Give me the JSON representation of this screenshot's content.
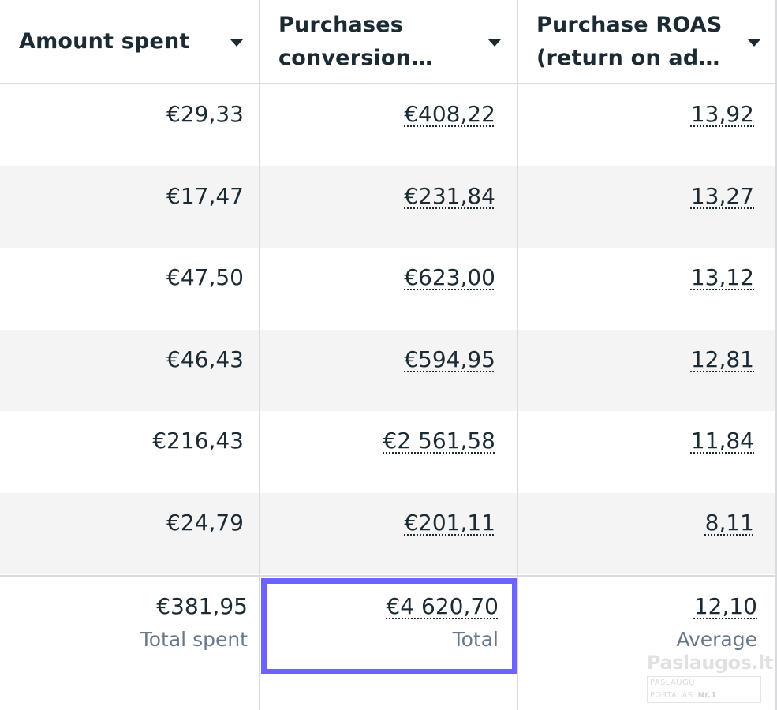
{
  "columns": [
    {
      "label": "Amount spent",
      "icon": "caret-down-icon"
    },
    {
      "label": "Purchases\nconversion…",
      "icon": "caret-down-icon"
    },
    {
      "label": "Purchase ROAS\n(return on ad…",
      "icon": "caret-down-icon"
    }
  ],
  "rows": [
    {
      "amount": "€29,33",
      "conversion": "€408,22",
      "roas": "13,92"
    },
    {
      "amount": "€17,47",
      "conversion": "€231,84",
      "roas": "13,27"
    },
    {
      "amount": "€47,50",
      "conversion": "€623,00",
      "roas": "13,12"
    },
    {
      "amount": "€46,43",
      "conversion": "€594,95",
      "roas": "12,81"
    },
    {
      "amount": "€216,43",
      "conversion": "€2 561,58",
      "roas": "11,84"
    },
    {
      "amount": "€24,79",
      "conversion": "€201,11",
      "roas": "8,11"
    }
  ],
  "totals": {
    "amount": {
      "value": "€381,95",
      "label": "Total spent"
    },
    "conversion": {
      "value": "€4 620,70",
      "label": "Total"
    },
    "roas": {
      "value": "12,10",
      "label": "Average"
    }
  },
  "watermark": {
    "title": "Paslaugos.lt",
    "subtitle": "PASLAUGŲ PORTALAS",
    "badge": "Nr.1"
  },
  "colors": {
    "highlight": "#6c63ff",
    "text": "#1c2b33",
    "muted": "#67788a",
    "alt_row": "#f4f4f5",
    "border": "#d9dcde"
  }
}
